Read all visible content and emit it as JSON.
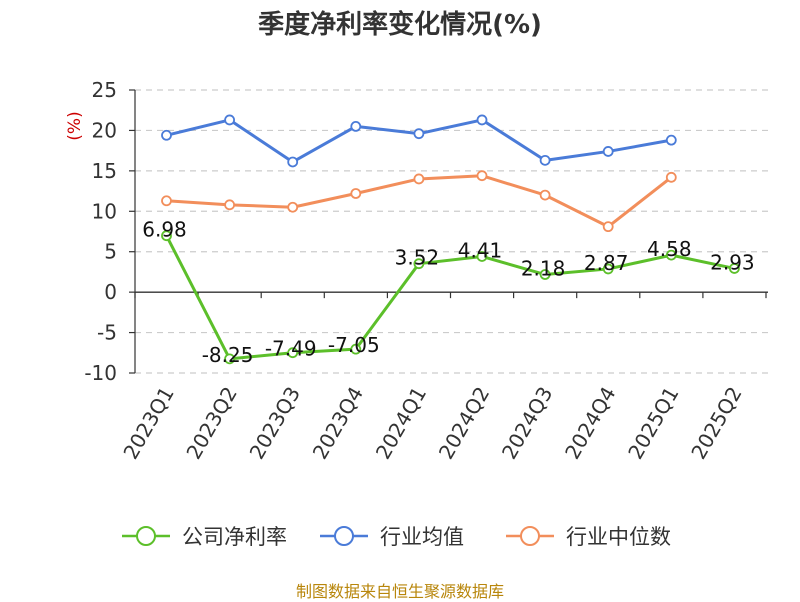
{
  "chart_data": {
    "type": "line",
    "title": "季度净利率变化情况(%)",
    "ylabel": "(%)",
    "ylim": [
      -10,
      25
    ],
    "yticks": [
      -10,
      -5,
      0,
      5,
      10,
      15,
      20,
      25
    ],
    "grid": true,
    "legend_position": "bottom",
    "categories": [
      "2023Q1",
      "2023Q2",
      "2023Q3",
      "2023Q4",
      "2024Q1",
      "2024Q2",
      "2024Q3",
      "2024Q4",
      "2025Q1",
      "2025Q2"
    ],
    "series": [
      {
        "name": "公司净利率",
        "color": "#5cbf2a",
        "values": [
          6.98,
          -8.25,
          -7.49,
          -7.05,
          3.52,
          4.41,
          2.18,
          2.87,
          4.58,
          2.93
        ],
        "labels": [
          "6.98",
          "-8.25",
          "-7.49",
          "-7.05",
          "3.52",
          "4.41",
          "2.18",
          "2.87",
          "4.58",
          "2.93"
        ]
      },
      {
        "name": "行业均值",
        "color": "#4a7bd8",
        "values": [
          19.4,
          21.3,
          16.1,
          20.5,
          19.6,
          21.3,
          16.3,
          17.4,
          18.8,
          null
        ]
      },
      {
        "name": "行业中位数",
        "color": "#f28e5b",
        "values": [
          11.3,
          10.8,
          10.5,
          12.2,
          14.0,
          14.4,
          12.0,
          8.1,
          14.2,
          null
        ]
      }
    ]
  },
  "source_note": "制图数据来自恒生聚源数据库"
}
